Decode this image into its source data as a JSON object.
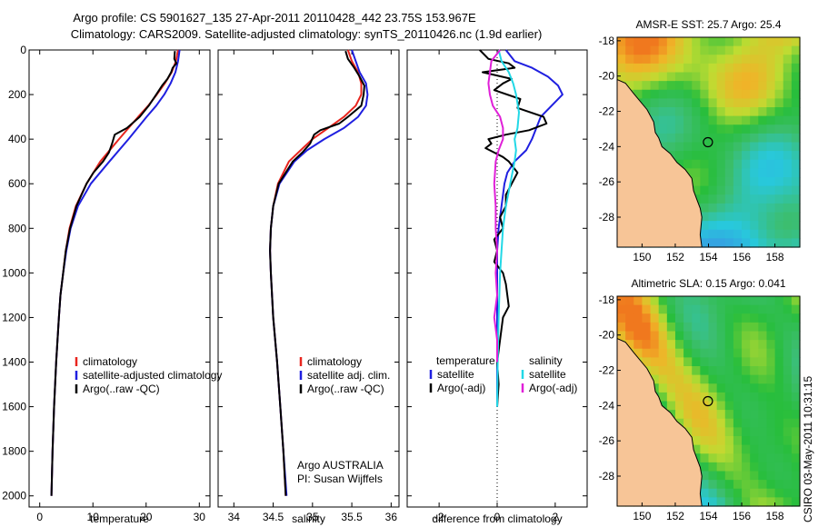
{
  "title_line1": "Argo profile: CS 5901627_135 27-Apr-2011 20110428_442 23.75S 153.967E",
  "title_line2": "Climatology: CARS2009. Satellite-adjusted climatology: synTS_20110426.nc (1.9d earlier)",
  "side_label": "CSIRO 03-May-2011 10:31:15",
  "colors": {
    "red": "#e8251e",
    "blue": "#1f1fe0",
    "black": "#000000",
    "cyan": "#22d8e6",
    "magenta": "#e020d8",
    "land": "#f7c597"
  },
  "chart_data": [
    {
      "type": "line",
      "id": "temperature",
      "xlabel": "temperature",
      "ylabel": "",
      "xlim": [
        -2,
        32
      ],
      "ylim": [
        2050,
        0
      ],
      "xticks": [
        0,
        10,
        20,
        30
      ],
      "xtick_labels": [
        "0",
        "10",
        "20",
        "30"
      ],
      "yticks": [
        0,
        200,
        400,
        600,
        800,
        1000,
        1200,
        1400,
        1600,
        1800,
        2000
      ],
      "ytick_labels": [
        "0",
        "200",
        "400",
        "600",
        "800",
        "1000",
        "1200",
        "1400",
        "1600",
        "1800",
        "2000"
      ],
      "legend": [
        "climatology",
        "satellite-adjusted climatology",
        "Argo(..raw -QC)"
      ],
      "legend_loc": "lower-right",
      "series": [
        {
          "name": "climatology",
          "color": "red",
          "depth": [
            0,
            50,
            100,
            150,
            200,
            250,
            300,
            400,
            500,
            600,
            700,
            800,
            900,
            1000,
            1100,
            1200,
            1400,
            1600,
            1800,
            2000
          ],
          "values": [
            26.0,
            25.6,
            24.8,
            23.5,
            22.0,
            20.4,
            18.5,
            14.9,
            11.4,
            8.8,
            6.8,
            5.6,
            4.9,
            4.4,
            3.9,
            3.6,
            3.1,
            2.7,
            2.4,
            2.2
          ]
        },
        {
          "name": "satellite-adjusted climatology",
          "color": "blue",
          "depth": [
            0,
            50,
            100,
            150,
            200,
            250,
            300,
            400,
            500,
            600,
            700,
            800,
            900,
            1000,
            1100,
            1200,
            1400,
            1600,
            1800,
            2000
          ],
          "values": [
            26.3,
            26.0,
            25.5,
            24.6,
            23.4,
            21.9,
            20.1,
            16.7,
            13.1,
            9.6,
            7.2,
            5.8,
            5.0,
            4.4,
            3.9,
            3.6,
            3.1,
            2.7,
            2.4,
            2.2
          ]
        },
        {
          "name": "Argo(..raw -QC)",
          "color": "black",
          "depth": [
            5,
            40,
            60,
            80,
            100,
            130,
            160,
            200,
            250,
            300,
            350,
            380,
            420,
            460,
            500,
            550,
            600,
            700,
            800,
            900,
            1000,
            1100,
            1200,
            1400,
            1600,
            1800,
            2000
          ],
          "values": [
            25.4,
            25.3,
            25.7,
            25.0,
            24.7,
            24.0,
            23.0,
            21.9,
            20.5,
            18.8,
            16.4,
            14.1,
            13.6,
            13.0,
            11.9,
            10.1,
            8.8,
            6.9,
            5.7,
            4.9,
            4.4,
            3.9,
            3.6,
            3.1,
            2.7,
            2.4,
            2.2
          ]
        }
      ]
    },
    {
      "type": "line",
      "id": "salinity",
      "xlabel": "salinity",
      "ylabel": "",
      "xlim": [
        33.8,
        36.1
      ],
      "ylim": [
        2050,
        0
      ],
      "xticks": [
        34,
        34.5,
        35,
        35.5,
        36
      ],
      "xtick_labels": [
        "34",
        "34.5",
        "35",
        "35.5",
        "36"
      ],
      "legend": [
        "climatology",
        "satellite adj. clim.",
        "Argo(..raw -QC)"
      ],
      "legend_loc": "lower-right",
      "annotation": [
        "Argo AUSTRALIA",
        "PI: Susan Wijffels"
      ],
      "series": [
        {
          "name": "climatology",
          "color": "red",
          "depth": [
            0,
            50,
            100,
            150,
            200,
            250,
            300,
            350,
            400,
            450,
            500,
            600,
            700,
            800,
            900,
            1000,
            1200,
            1400,
            1600,
            1800,
            2000
          ],
          "values": [
            35.45,
            35.5,
            35.58,
            35.62,
            35.62,
            35.55,
            35.4,
            35.2,
            35.0,
            34.85,
            34.7,
            34.56,
            34.5,
            34.47,
            34.46,
            34.47,
            34.5,
            34.55,
            34.59,
            34.63,
            34.66
          ]
        },
        {
          "name": "satellite adj. clim.",
          "color": "blue",
          "depth": [
            0,
            50,
            100,
            150,
            200,
            250,
            300,
            350,
            400,
            450,
            500,
            600,
            700,
            800,
            900,
            1000,
            1200,
            1400,
            1600,
            1800,
            2000
          ],
          "values": [
            35.5,
            35.55,
            35.6,
            35.68,
            35.7,
            35.68,
            35.58,
            35.4,
            35.15,
            34.93,
            34.77,
            34.58,
            34.5,
            34.47,
            34.46,
            34.47,
            34.5,
            34.55,
            34.59,
            34.63,
            34.67
          ]
        },
        {
          "name": "Argo(..raw -QC)",
          "color": "black",
          "depth": [
            5,
            40,
            80,
            120,
            160,
            200,
            250,
            300,
            330,
            360,
            380,
            420,
            460,
            500,
            600,
            700,
            800,
            900,
            1000,
            1200,
            1400,
            1600,
            1800,
            2000
          ],
          "values": [
            35.42,
            35.45,
            35.53,
            35.6,
            35.66,
            35.65,
            35.62,
            35.45,
            35.34,
            35.1,
            35.02,
            34.97,
            34.87,
            34.75,
            34.57,
            34.5,
            34.47,
            34.46,
            34.47,
            34.5,
            34.55,
            34.59,
            34.63,
            34.66
          ]
        }
      ]
    },
    {
      "type": "line",
      "id": "difference",
      "xlabel": "difference from climatology",
      "xlim": [
        -3.1,
        3.1
      ],
      "ylim": [
        2050,
        0
      ],
      "xticks": [
        -2,
        0,
        2
      ],
      "xtick_labels": [
        "-2",
        "0",
        "2"
      ],
      "legend_left_title": "temperature",
      "legend_right_title": "salinity",
      "legend": [
        "satellite",
        "Argo(-adj)",
        "satellite",
        "Argo(-adj)"
      ],
      "series": [
        {
          "name": "temperature satellite",
          "color": "blue",
          "depth": [
            0,
            50,
            80,
            120,
            160,
            200,
            260,
            300,
            400,
            450,
            500,
            550,
            600,
            700,
            800,
            900,
            1000,
            1200,
            1400,
            1600
          ],
          "values": [
            0.3,
            0.6,
            1.2,
            1.75,
            2.1,
            2.25,
            1.8,
            1.5,
            1.2,
            1.0,
            0.6,
            0.35,
            0.25,
            0.15,
            0.05,
            0.0,
            0.0,
            0.0,
            0.0,
            0.0
          ]
        },
        {
          "name": "temperature Argo(-adj)",
          "color": "black",
          "depth": [
            0,
            40,
            60,
            80,
            100,
            130,
            150,
            180,
            220,
            260,
            300,
            330,
            360,
            380,
            400,
            420,
            440,
            460,
            480,
            500,
            550,
            600,
            650,
            700,
            750,
            800,
            850,
            900,
            950,
            1000,
            1050,
            1100,
            1150,
            1200,
            1300,
            1400,
            1500,
            1600
          ],
          "values": [
            -0.6,
            -0.3,
            0.4,
            0.6,
            -0.5,
            0.5,
            0.2,
            -0.1,
            0.8,
            0.7,
            1.6,
            1.7,
            1.1,
            0.3,
            -0.3,
            -0.2,
            -0.4,
            -0.1,
            0.2,
            0.4,
            0.7,
            0.5,
            0.3,
            0.3,
            0.1,
            0.2,
            -0.1,
            0.0,
            -0.1,
            0.2,
            0.3,
            0.35,
            0.4,
            0.2,
            0.1,
            0.0,
            0.05,
            0.0
          ]
        },
        {
          "name": "salinity satellite",
          "color": "cyan",
          "depth": [
            0,
            50,
            100,
            150,
            200,
            280,
            350,
            400,
            450,
            500,
            600,
            700,
            800,
            1000,
            1200,
            1400,
            1600
          ],
          "values": [
            0.05,
            0.15,
            0.4,
            0.55,
            0.65,
            0.75,
            0.7,
            0.6,
            0.65,
            0.6,
            0.45,
            0.3,
            0.2,
            0.1,
            0.05,
            0.02,
            0.0
          ]
        },
        {
          "name": "salinity Argo(-adj)",
          "color": "magenta",
          "depth": [
            0,
            50,
            100,
            150,
            200,
            250,
            300,
            350,
            400,
            450,
            500,
            600,
            700,
            800,
            900,
            1000,
            1100,
            1200,
            1300,
            1400
          ],
          "values": [
            0.1,
            -0.2,
            -0.25,
            -0.3,
            -0.25,
            -0.15,
            0.1,
            0.2,
            0.2,
            0.05,
            -0.05,
            -0.1,
            -0.05,
            -0.05,
            0.0,
            -0.05,
            0.0,
            -0.1,
            0.0,
            0.0
          ]
        }
      ]
    },
    {
      "type": "heatmap",
      "id": "sst_map",
      "title": "AMSR-E SST: 25.7 Argo: 25.4",
      "xlim": [
        148.5,
        159.5
      ],
      "ylim": [
        -29.7,
        -17.8
      ],
      "xticks": [
        150,
        152,
        154,
        156,
        158
      ],
      "xtick_labels": [
        "150",
        "152",
        "154",
        "156",
        "158"
      ],
      "yticks": [
        -18,
        -20,
        -22,
        -24,
        -26,
        -28
      ],
      "ytick_labels": [
        "-18",
        "-20",
        "-22",
        "-24",
        "-26",
        "-28"
      ],
      "marker": {
        "lon": 153.967,
        "lat": -23.75
      },
      "coastline": {
        "lon": [
          148.5,
          149.0,
          149.5,
          150.3,
          150.7,
          150.8,
          151.0,
          151.2,
          151.7,
          152.1,
          152.6,
          153.0,
          153.1,
          153.3,
          153.5,
          153.6,
          153.5,
          153.6
        ],
        "lat": [
          -20.2,
          -20.4,
          -21.0,
          -21.9,
          -22.6,
          -23.2,
          -23.5,
          -24.0,
          -24.4,
          -24.9,
          -25.3,
          -25.8,
          -26.5,
          -27.0,
          -27.5,
          -28.0,
          -29.0,
          -29.7
        ]
      }
    },
    {
      "type": "heatmap",
      "id": "sla_map",
      "title": "Altimetric SLA: 0.15 Argo: 0.041",
      "xlim": [
        148.5,
        159.5
      ],
      "ylim": [
        -29.7,
        -17.8
      ],
      "xticks": [
        150,
        152,
        154,
        156,
        158
      ],
      "xtick_labels": [
        "150",
        "152",
        "154",
        "156",
        "158"
      ],
      "yticks": [
        -18,
        -20,
        -22,
        -24,
        -26,
        -28
      ],
      "ytick_labels": [
        "-18",
        "-20",
        "-22",
        "-24",
        "-26",
        "-28"
      ],
      "marker": {
        "lon": 153.967,
        "lat": -23.75
      },
      "coastline": {
        "lon": [
          148.5,
          149.0,
          149.5,
          150.3,
          150.7,
          150.8,
          151.0,
          151.2,
          151.7,
          152.1,
          152.6,
          153.0,
          153.1,
          153.3,
          153.5,
          153.6,
          153.5,
          153.6
        ],
        "lat": [
          -20.2,
          -20.4,
          -21.0,
          -21.9,
          -22.6,
          -23.2,
          -23.5,
          -24.0,
          -24.4,
          -24.9,
          -25.3,
          -25.8,
          -26.5,
          -27.0,
          -27.5,
          -28.0,
          -29.0,
          -29.7
        ]
      }
    }
  ]
}
